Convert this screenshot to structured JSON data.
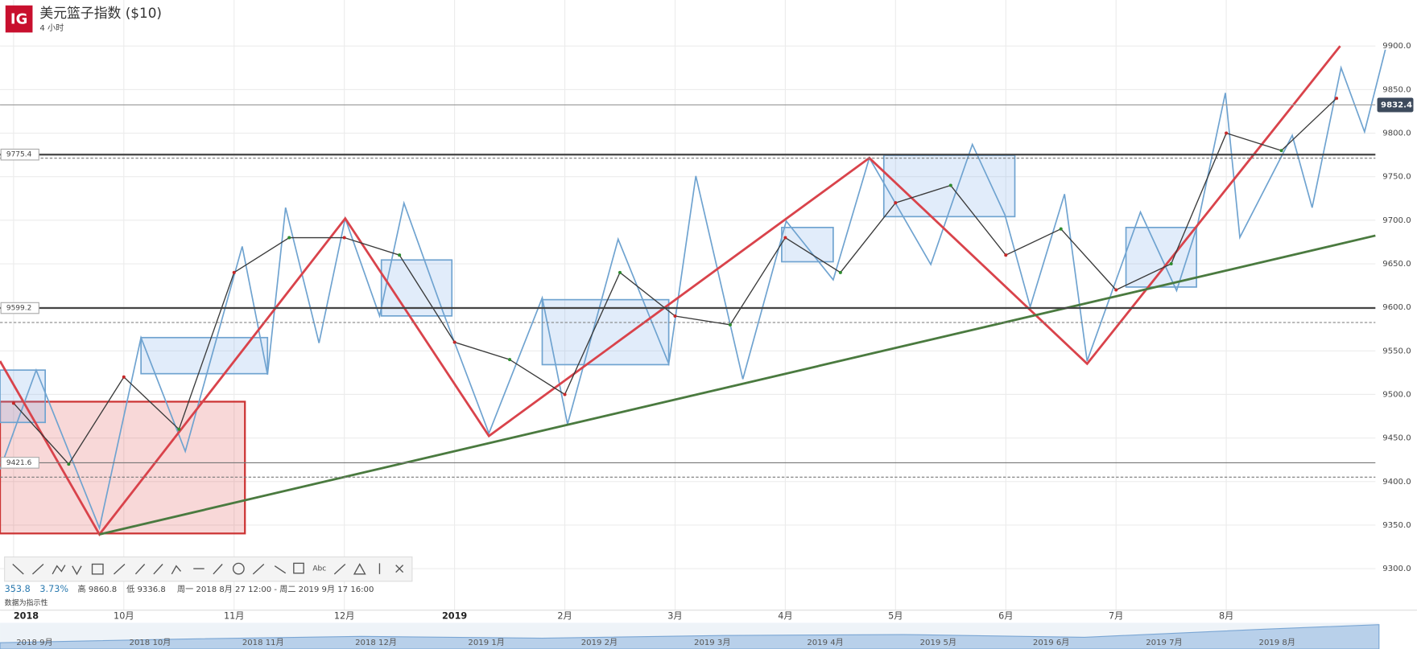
{
  "chart_data": {
    "type": "line",
    "title": "美元篮子指数 ($10)",
    "subtitle": "4 小时",
    "categories": [
      "2018",
      null,
      "10月",
      null,
      "11月",
      null,
      "12月",
      null,
      "2019",
      null,
      "2月",
      null,
      "3月",
      null,
      "4月",
      null,
      "5月",
      null,
      "6月",
      null,
      "7月",
      null,
      "8月",
      null,
      null
    ],
    "series": [
      {
        "name": "美元篮子指数",
        "color": "#3a3a3a",
        "values": [
          9490,
          9420,
          9520,
          9460,
          9640,
          9680,
          9680,
          9660,
          9560,
          9540,
          9500,
          9640,
          9590,
          9580,
          9680,
          9640,
          9720,
          9740,
          9660,
          9690,
          9620,
          9650,
          9800,
          9780,
          9840
        ]
      }
    ],
    "ylim": [
      9250,
      9925
    ],
    "yticks": [
      {
        "value": 9300,
        "label": "9300.0"
      },
      {
        "value": 9350,
        "label": "9350.0"
      },
      {
        "value": 9400,
        "label": "9400.0"
      },
      {
        "value": 9450,
        "label": "9450.0"
      },
      {
        "value": 9500,
        "label": "9500.0"
      },
      {
        "value": 9550,
        "label": "9550.0"
      },
      {
        "value": 9600,
        "label": "9600.0"
      },
      {
        "value": 9650,
        "label": "9650.0"
      },
      {
        "value": 9700,
        "label": "9700.0"
      },
      {
        "value": 9750,
        "label": "9750.0"
      },
      {
        "value": 9800,
        "label": "9800.0"
      },
      {
        "value": 9850,
        "label": "9850.0"
      },
      {
        "value": 9900,
        "label": "9900.0"
      }
    ],
    "grid": true,
    "levels": [
      9775.4,
      9599.2,
      9421.6
    ],
    "current_price": 9832.4,
    "stats": {
      "change": "353.8",
      "change_pct": "3.73%",
      "high": "高 9860.8",
      "low": "低 9336.8",
      "range": "周一 2018 8月 27 12:00 - 周二 2019 9月 17 16:00",
      "note": "数据为指示性"
    },
    "navigator": [
      "2018 9月",
      "2018 10月",
      "2018 11月",
      "2018 12月",
      "2019 1月",
      "2019 2月",
      "2019 3月",
      "2019 4月",
      "2019 5月",
      "2019 6月",
      "2019 7月",
      "2019 8月"
    ]
  }
}
